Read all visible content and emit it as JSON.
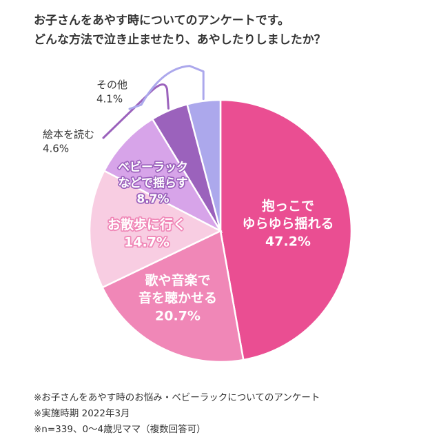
{
  "title": {
    "line1": "お子さんをあやす時についてのアンケートです。",
    "line2": "どんな方法で泣き止ませたり、あやしたりしましたか？"
  },
  "chart_data": {
    "type": "pie",
    "slices": [
      {
        "label_lines": [
          "抱っこで",
          "ゆらゆら揺れる"
        ],
        "value": 47.2,
        "value_text": "47.2%",
        "color": "#ea4e92"
      },
      {
        "label_lines": [
          "歌や音楽で",
          "音を聴かせる"
        ],
        "value": 20.7,
        "value_text": "20.7%",
        "color": "#f087b7"
      },
      {
        "label_lines": [
          "お散歩に行く"
        ],
        "value": 14.7,
        "value_text": "14.7%",
        "color": "#f8cde2"
      },
      {
        "label_lines": [
          "ベビーラック",
          "などで揺らす"
        ],
        "value": 8.7,
        "value_text": "8.7%",
        "color": "#d7a4e9"
      },
      {
        "label_lines": [
          "絵本を読む"
        ],
        "value": 4.6,
        "value_text": "4.6%",
        "color": "#9b62bc"
      },
      {
        "label_lines": [
          "その他"
        ],
        "value": 4.1,
        "value_text": "4.1%",
        "color": "#aca8ec"
      }
    ]
  },
  "notes": [
    "※お子さんをあやす時のお悩み・ベビーラックについてのアンケート",
    "※実施時期 2022年3月",
    "※n=339、0〜4歳児ママ（複数回答可）"
  ]
}
